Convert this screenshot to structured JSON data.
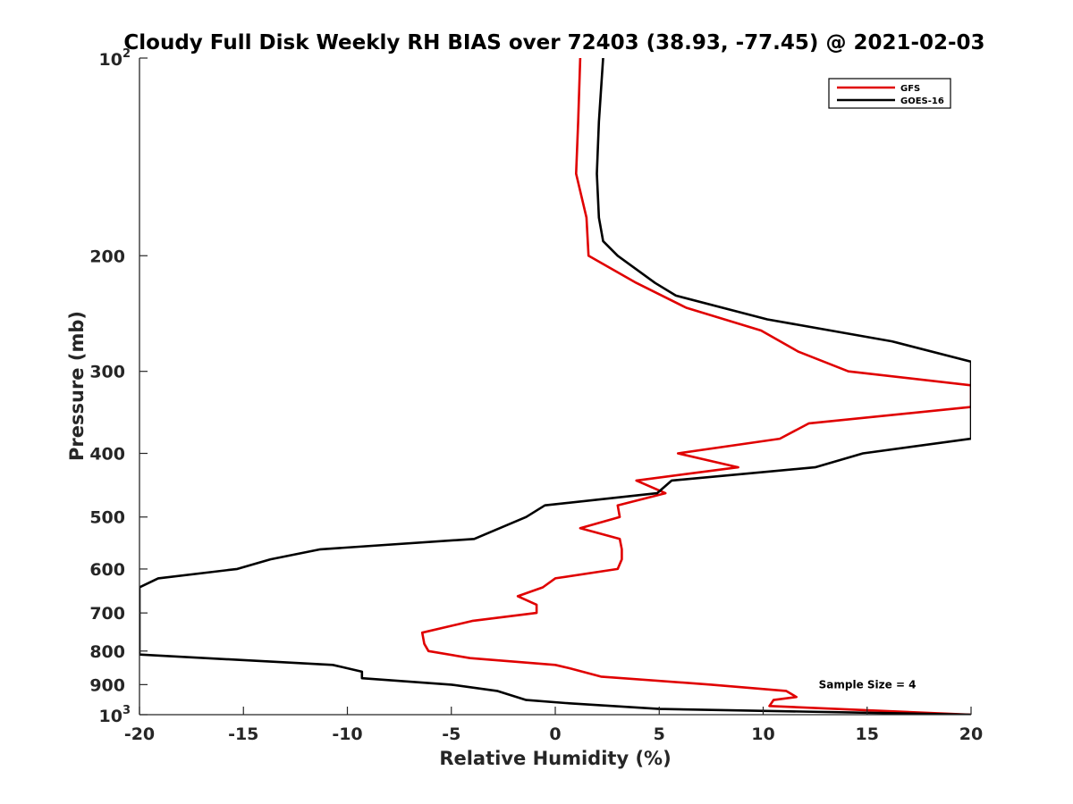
{
  "chart_data": {
    "type": "line",
    "title": "Cloudy Full Disk Weekly RH BIAS over 72403 (38.93, -77.45) @ 2021-02-03",
    "xlabel": "Relative Humidity (%)",
    "ylabel": "Pressure (mb)",
    "xlim": [
      -20,
      20
    ],
    "ylim": [
      100,
      1000
    ],
    "y_scale": "log",
    "y_reversed": true,
    "grid": false,
    "legend_position": "top-right",
    "xticks": [
      "-20",
      "-15",
      "-10",
      "-5",
      "0",
      "5",
      "10",
      "15",
      "20"
    ],
    "xtick_values": [
      -20,
      -15,
      -10,
      -5,
      0,
      5,
      10,
      15,
      20
    ],
    "yticks": [
      {
        "value": 100,
        "base": "10",
        "exp": "2",
        "label": ""
      },
      {
        "value": 200,
        "base": "",
        "exp": "",
        "label": "200"
      },
      {
        "value": 300,
        "base": "",
        "exp": "",
        "label": "300"
      },
      {
        "value": 400,
        "base": "",
        "exp": "",
        "label": "400"
      },
      {
        "value": 500,
        "base": "",
        "exp": "",
        "label": "500"
      },
      {
        "value": 600,
        "base": "",
        "exp": "",
        "label": "600"
      },
      {
        "value": 700,
        "base": "",
        "exp": "",
        "label": "700"
      },
      {
        "value": 800,
        "base": "",
        "exp": "",
        "label": "800"
      },
      {
        "value": 900,
        "base": "",
        "exp": "",
        "label": "900"
      },
      {
        "value": 1000,
        "base": "10",
        "exp": "3",
        "label": ""
      }
    ],
    "annotations": [
      {
        "text": "Sample Size = 4",
        "x": 12.5,
        "y": 900
      }
    ],
    "series": [
      {
        "name": "GFS",
        "color": "#e00000",
        "points": [
          [
            1.2,
            100
          ],
          [
            1.1,
            125
          ],
          [
            1.0,
            150
          ],
          [
            1.5,
            175
          ],
          [
            1.6,
            200
          ],
          [
            3.9,
            220
          ],
          [
            6.3,
            240
          ],
          [
            9.9,
            260
          ],
          [
            11.7,
            280
          ],
          [
            14.1,
            300
          ],
          [
            20.0,
            315
          ],
          [
            20.0,
            340
          ],
          [
            12.2,
            360
          ],
          [
            10.8,
            380
          ],
          [
            5.9,
            400
          ],
          [
            8.8,
            420
          ],
          [
            3.9,
            440
          ],
          [
            5.3,
            460
          ],
          [
            3.0,
            480
          ],
          [
            3.1,
            500
          ],
          [
            1.2,
            520
          ],
          [
            3.1,
            540
          ],
          [
            3.2,
            560
          ],
          [
            3.2,
            580
          ],
          [
            3.0,
            600
          ],
          [
            0.0,
            620
          ],
          [
            -0.6,
            640
          ],
          [
            -1.8,
            660
          ],
          [
            -0.9,
            680
          ],
          [
            -0.9,
            700
          ],
          [
            -4.0,
            720
          ],
          [
            -6.4,
            750
          ],
          [
            -6.3,
            780
          ],
          [
            -6.1,
            800
          ],
          [
            -4.1,
            820
          ],
          [
            0.0,
            840
          ],
          [
            0.7,
            850
          ],
          [
            2.2,
            875
          ],
          [
            7.5,
            900
          ],
          [
            11.1,
            920
          ],
          [
            11.6,
            940
          ],
          [
            10.5,
            950
          ],
          [
            10.3,
            970
          ],
          [
            20.0,
            1000
          ]
        ]
      },
      {
        "name": "GOES-16",
        "color": "#000000",
        "points": [
          [
            2.3,
            100
          ],
          [
            2.1,
            125
          ],
          [
            2.0,
            150
          ],
          [
            2.1,
            175
          ],
          [
            2.3,
            190
          ],
          [
            3.0,
            200
          ],
          [
            4.8,
            220
          ],
          [
            5.8,
            230
          ],
          [
            10.2,
            250
          ],
          [
            16.2,
            270
          ],
          [
            20.0,
            290
          ],
          [
            20.0,
            380
          ],
          [
            14.8,
            400
          ],
          [
            12.5,
            420
          ],
          [
            5.6,
            440
          ],
          [
            4.9,
            460
          ],
          [
            -0.5,
            480
          ],
          [
            -1.4,
            500
          ],
          [
            -3.9,
            540
          ],
          [
            -11.3,
            560
          ],
          [
            -13.7,
            580
          ],
          [
            -15.3,
            600
          ],
          [
            -19.1,
            620
          ],
          [
            -20.0,
            640
          ],
          [
            -20.0,
            810
          ],
          [
            -10.7,
            840
          ],
          [
            -9.3,
            860
          ],
          [
            -9.3,
            880
          ],
          [
            -5.0,
            900
          ],
          [
            -2.8,
            920
          ],
          [
            -1.4,
            950
          ],
          [
            0.5,
            960
          ],
          [
            5.0,
            980
          ],
          [
            20.0,
            1000
          ]
        ]
      }
    ]
  }
}
